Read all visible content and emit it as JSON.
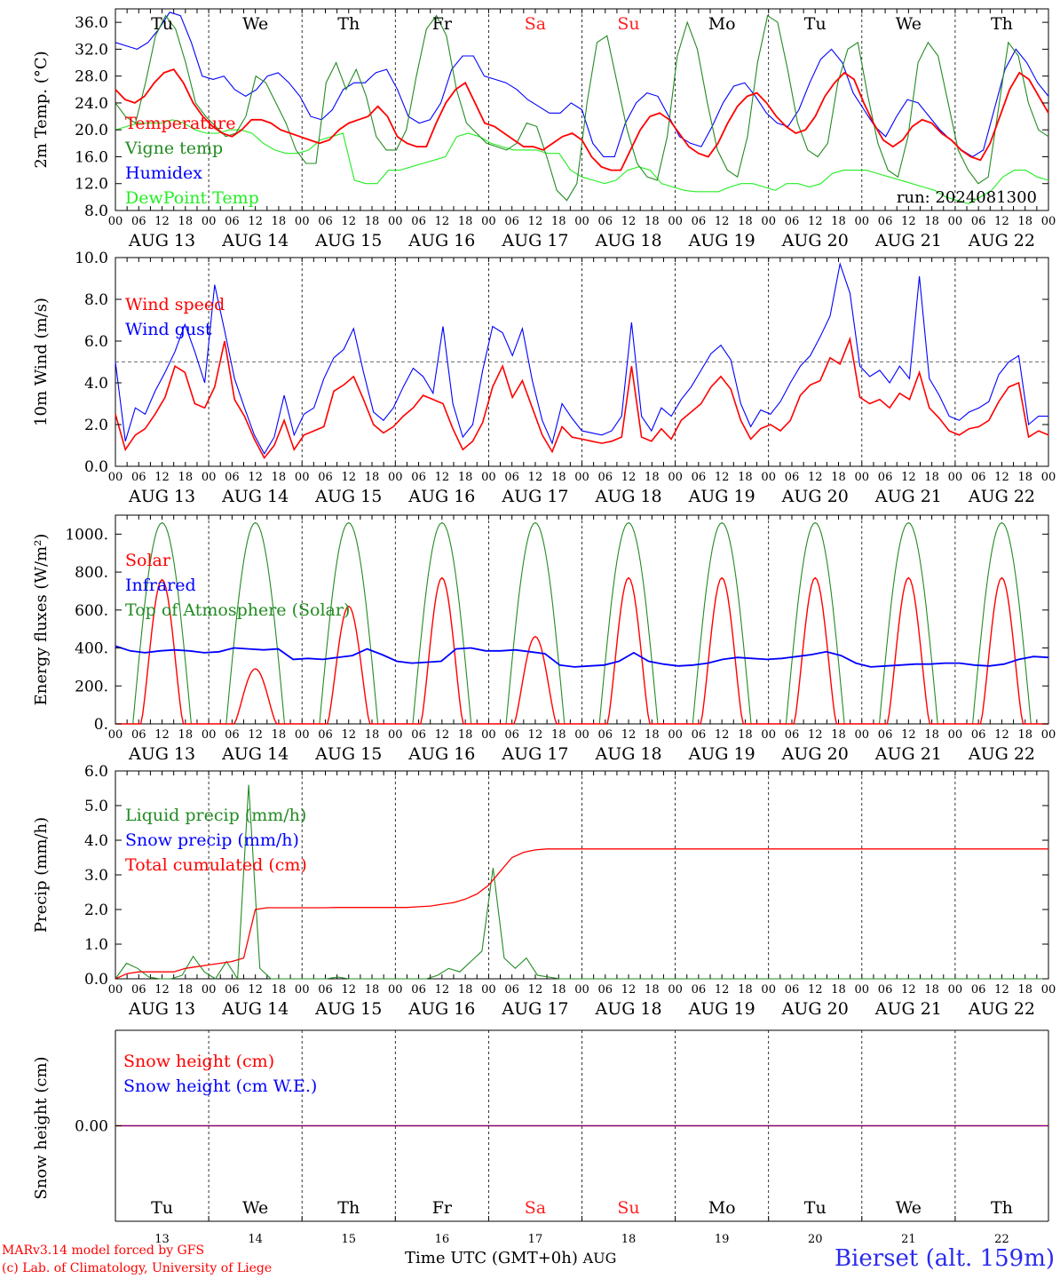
{
  "footer": {
    "model": "MARv3.14 model forced by GFS",
    "credit": "(c) Lab. of Climatology, University of Liege",
    "axis_title": "Time UTC (GMT+0h)",
    "month": "AUG",
    "station": "Bierset (alt. 159m)"
  },
  "run_label": "run: 2024081300",
  "days": [
    "AUG 13",
    "AUG 14",
    "AUG 15",
    "AUG 16",
    "AUG 17",
    "AUG 18",
    "AUG 19",
    "AUG 20",
    "AUG 21",
    "AUG 22"
  ],
  "day_numbers": [
    "13",
    "14",
    "15",
    "16",
    "17",
    "18",
    "19",
    "20",
    "21",
    "22"
  ],
  "weekdays": [
    "Tu",
    "We",
    "Th",
    "Fr",
    "Sa",
    "Su",
    "Mo",
    "Tu",
    "We",
    "Th"
  ],
  "weekend_color": "#ff2020",
  "hour_ticks": [
    "00",
    "06",
    "12",
    "18"
  ],
  "end_tick": "00",
  "chart_data": [
    {
      "type": "line",
      "ylabel": "2m Temp. (°C)",
      "ylim": [
        8,
        38
      ],
      "yticks": [
        "36.0",
        "32.0",
        "28.0",
        "24.0",
        "20.0",
        "16.0",
        "12.0",
        "8.0"
      ],
      "ytick_values": [
        36,
        32,
        28,
        24,
        20,
        16,
        12,
        8
      ],
      "x": "hours since AUG 13 00 UTC, 3-hourly step",
      "series": [
        {
          "name": "Temperature",
          "color": "#ff0000",
          "values": [
            26,
            24.5,
            24,
            25,
            27,
            28.5,
            29,
            27,
            24,
            22,
            20.5,
            19.5,
            19,
            20,
            21.5,
            21.5,
            21,
            20,
            19.5,
            19,
            18.5,
            18,
            18.5,
            20,
            21,
            21.5,
            22,
            23.5,
            22,
            19,
            18,
            17.5,
            17.5,
            21,
            24,
            26,
            27,
            24,
            21,
            20.5,
            19.5,
            18.5,
            17.5,
            17.5,
            17,
            18,
            19,
            19.5,
            18.5,
            16,
            14.5,
            14,
            14,
            17,
            20,
            22,
            22.5,
            21.5,
            19.5,
            17.5,
            16.5,
            16,
            18,
            21,
            23.5,
            25,
            25.5,
            24,
            22,
            20.5,
            19.5,
            20,
            22,
            25,
            27,
            28.5,
            27.5,
            24,
            21,
            18.5,
            17.5,
            18.5,
            20.5,
            21.5,
            21,
            19.5,
            18.5,
            17,
            16,
            15.5,
            18,
            22,
            26,
            28.5,
            27.5,
            25,
            22.5
          ]
        },
        {
          "name": "Vigne temp",
          "color": "#228b22",
          "values": [
            24,
            22,
            21,
            27,
            34,
            37,
            35,
            30,
            24,
            22,
            20.5,
            19,
            19.5,
            22,
            28,
            27,
            24,
            21,
            17,
            15,
            15,
            27,
            30,
            26,
            29,
            25,
            19,
            17,
            17,
            20,
            28,
            35,
            37,
            34,
            26,
            21,
            19.5,
            18,
            17.5,
            17,
            18,
            21,
            20.5,
            16,
            11,
            9.5,
            12,
            24,
            33,
            34,
            27,
            20,
            15,
            13,
            12.5,
            19,
            31,
            36,
            32,
            24,
            17,
            14,
            13,
            19,
            30,
            37,
            36,
            29,
            21,
            17,
            16,
            18,
            27,
            32,
            33,
            25,
            18,
            14,
            13,
            19,
            30,
            33,
            31,
            24,
            17,
            14,
            12,
            13,
            23,
            33,
            31,
            24,
            20,
            19
          ]
        },
        {
          "name": "Humidex",
          "color": "#0000ff",
          "values": [
            33,
            32.5,
            32,
            33,
            35,
            37.5,
            37,
            33,
            28,
            27.5,
            28,
            26,
            25,
            26,
            28,
            28.5,
            27,
            25,
            22,
            21.5,
            23,
            26,
            27,
            27,
            28.5,
            29,
            26,
            22,
            21,
            21.5,
            24,
            29,
            31,
            31,
            28,
            27.5,
            27,
            26,
            24.5,
            23.5,
            22.5,
            22.5,
            24,
            23,
            18,
            16,
            16,
            21,
            24,
            25.5,
            25,
            22,
            19,
            18,
            17.5,
            20.5,
            24,
            26.5,
            27,
            25,
            22.5,
            21,
            20.5,
            23,
            27,
            30.5,
            32,
            30,
            25.5,
            23,
            20.5,
            19,
            22,
            24.5,
            24,
            22,
            20,
            18.5,
            17,
            16,
            17,
            23,
            29,
            32,
            30,
            27,
            25
          ]
        },
        {
          "name": "DewPoint Temp",
          "color": "#22ee22",
          "values": [
            20,
            20.5,
            21,
            21,
            21,
            21.5,
            21,
            20,
            19.5,
            19.5,
            20,
            20,
            19.5,
            18,
            17,
            16.5,
            16.5,
            17,
            18.5,
            19,
            19.5,
            12.5,
            12,
            12,
            14,
            14,
            14.5,
            15,
            15.5,
            16,
            19,
            19.5,
            19,
            18,
            17.5,
            17,
            17,
            17,
            16.5,
            16.5,
            14,
            13,
            12.5,
            12,
            12.5,
            14,
            14.5,
            14,
            12,
            11.5,
            11,
            10.8,
            10.8,
            10.8,
            11.5,
            12,
            12,
            11.5,
            11,
            12,
            12,
            11.5,
            12,
            13.5,
            14,
            14,
            14,
            13.5,
            13,
            12.5,
            12,
            11.5,
            11,
            10,
            9.5,
            9,
            10,
            11,
            13,
            14,
            14,
            13,
            12.5
          ]
        }
      ]
    },
    {
      "type": "line",
      "ylabel": "10m Wind (m/s)",
      "ylim": [
        0,
        10
      ],
      "yticks": [
        "10.0",
        "8.0",
        "6.0",
        "4.0",
        "2.0",
        "0.0"
      ],
      "ytick_values": [
        10,
        8,
        6,
        4,
        2,
        0
      ],
      "reference_line": 5,
      "series": [
        {
          "name": "Wind speed",
          "color": "#ff0000",
          "values": [
            2.5,
            0.8,
            1.5,
            1.8,
            2.5,
            3.3,
            4.8,
            4.5,
            3.0,
            2.8,
            3.8,
            6.0,
            3.2,
            2.4,
            1.3,
            0.4,
            1.0,
            2.2,
            0.8,
            1.5,
            1.7,
            1.9,
            3.6,
            3.9,
            4.3,
            3.2,
            2.0,
            1.6,
            1.9,
            2.4,
            2.8,
            3.4,
            3.2,
            3.0,
            1.8,
            0.8,
            1.2,
            2.1,
            3.8,
            4.8,
            3.3,
            4.1,
            2.8,
            1.5,
            0.7,
            1.9,
            1.4,
            1.3,
            1.2,
            1.1,
            1.2,
            1.4,
            4.8,
            1.4,
            1.2,
            1.8,
            1.3,
            2.2,
            2.6,
            3.0,
            3.8,
            4.3,
            3.7,
            2.2,
            1.3,
            1.8,
            2.0,
            1.7,
            2.2,
            3.4,
            3.9,
            4.1,
            5.2,
            4.9,
            6.1,
            3.3,
            3.0,
            3.2,
            2.8,
            3.5,
            3.2,
            4.5,
            2.8,
            2.3,
            1.7,
            1.5,
            1.8,
            1.9,
            2.2,
            3.1,
            3.8,
            4.0,
            1.4,
            1.7,
            1.5
          ]
        },
        {
          "name": "Wind gust",
          "color": "#0000ff",
          "values": [
            5.0,
            1.2,
            2.8,
            2.5,
            3.6,
            4.5,
            5.5,
            6.8,
            5.5,
            4.0,
            8.7,
            6.5,
            4.2,
            2.8,
            1.5,
            0.6,
            1.4,
            3.4,
            1.5,
            2.5,
            2.8,
            4.2,
            5.2,
            5.6,
            6.6,
            4.5,
            2.6,
            2.2,
            2.8,
            3.8,
            4.7,
            4.3,
            3.5,
            6.7,
            3.0,
            1.4,
            2.0,
            4.6,
            6.7,
            6.4,
            5.3,
            6.6,
            4.1,
            2.2,
            1.1,
            3.0,
            2.3,
            1.7,
            1.6,
            1.5,
            1.7,
            2.4,
            6.9,
            2.4,
            1.7,
            2.8,
            2.4,
            3.2,
            3.8,
            4.6,
            5.4,
            5.8,
            5.1,
            3.0,
            1.9,
            2.7,
            2.5,
            3.1,
            4.0,
            4.8,
            5.3,
            6.2,
            7.2,
            9.7,
            8.3,
            4.8,
            4.3,
            4.6,
            4.0,
            4.8,
            4.2,
            9.1,
            4.2,
            3.4,
            2.4,
            2.2,
            2.6,
            2.8,
            3.1,
            4.4,
            5.0,
            5.3,
            2.0,
            2.4,
            2.4
          ]
        }
      ]
    },
    {
      "type": "line",
      "ylabel": "Energy fluxes (W/m²)",
      "ylim": [
        0,
        1100
      ],
      "yticks": [
        "1000.",
        "800.",
        "600.",
        "400.",
        "200.",
        "0."
      ],
      "ytick_values": [
        1000,
        800,
        600,
        400,
        200,
        0
      ],
      "series": [
        {
          "name": "Solar",
          "color": "#ff0000",
          "peaks": [
            760,
            290,
            620,
            770,
            460,
            770,
            770,
            770,
            770,
            770
          ]
        },
        {
          "name": "Infrared",
          "color": "#0000ff",
          "values": [
            410,
            385,
            375,
            385,
            390,
            385,
            375,
            380,
            400,
            395,
            390,
            395,
            340,
            345,
            340,
            350,
            360,
            395,
            365,
            330,
            320,
            325,
            330,
            395,
            400,
            385,
            385,
            390,
            380,
            370,
            310,
            300,
            305,
            310,
            330,
            375,
            330,
            315,
            305,
            310,
            320,
            340,
            350,
            345,
            340,
            345,
            355,
            365,
            380,
            360,
            320,
            300,
            305,
            310,
            315,
            315,
            320,
            320,
            310,
            305,
            315,
            340,
            355,
            350
          ]
        },
        {
          "name": "Top of Atmosphere (Solar)",
          "color": "#228b22",
          "peak": 1060
        }
      ]
    },
    {
      "type": "line",
      "ylabel": "Precip (mm/h)",
      "ylim": [
        0,
        6
      ],
      "yticks": [
        "6.0",
        "5.0",
        "4.0",
        "3.0",
        "2.0",
        "1.0",
        "0.0"
      ],
      "ytick_values": [
        6,
        5,
        4,
        3,
        2,
        1,
        0
      ],
      "series": [
        {
          "name": "Liquid precip (mm/h)",
          "color": "#228b22",
          "values": [
            0,
            0.45,
            0.3,
            0.05,
            0,
            0,
            0.1,
            0.65,
            0.2,
            0,
            0.5,
            0,
            5.6,
            0.3,
            0,
            0,
            0,
            0,
            0,
            0,
            0.05,
            0,
            0,
            0,
            0,
            0,
            0,
            0,
            0,
            0.1,
            0.3,
            0.2,
            0.5,
            0.8,
            3.2,
            0.6,
            0.3,
            0.6,
            0.1,
            0.05,
            0,
            0,
            0,
            0,
            0,
            0,
            0,
            0,
            0,
            0,
            0,
            0,
            0,
            0,
            0,
            0,
            0,
            0,
            0,
            0,
            0,
            0,
            0,
            0,
            0,
            0,
            0,
            0,
            0,
            0,
            0,
            0,
            0,
            0,
            0,
            0,
            0,
            0,
            0,
            0,
            0,
            0,
            0,
            0,
            0
          ]
        },
        {
          "name": "Snow precip (mm/h)",
          "color": "#0000ff",
          "values": [
            0
          ]
        },
        {
          "name": "Total cumulated (cm)",
          "color": "#ff0000",
          "values": [
            0,
            0.15,
            0.2,
            0.2,
            0.2,
            0.2,
            0.3,
            0.35,
            0.4,
            0.45,
            0.5,
            0.6,
            2.0,
            2.05,
            2.05,
            2.05,
            2.05,
            2.05,
            2.05,
            2.06,
            2.06,
            2.06,
            2.06,
            2.06,
            2.06,
            2.06,
            2.08,
            2.1,
            2.15,
            2.2,
            2.3,
            2.45,
            2.7,
            3.1,
            3.5,
            3.65,
            3.72,
            3.75,
            3.75
          ]
        }
      ]
    },
    {
      "type": "line",
      "ylabel": "Snow height (cm)",
      "yticks": [
        "0.00"
      ],
      "ytick_values": [
        0
      ],
      "series": [
        {
          "name": "Snow height (cm)",
          "color": "#ff0000",
          "values": [
            0
          ]
        },
        {
          "name": "Snow height (cm W.E.)",
          "color": "#0000ff",
          "values": [
            0
          ]
        }
      ]
    }
  ]
}
